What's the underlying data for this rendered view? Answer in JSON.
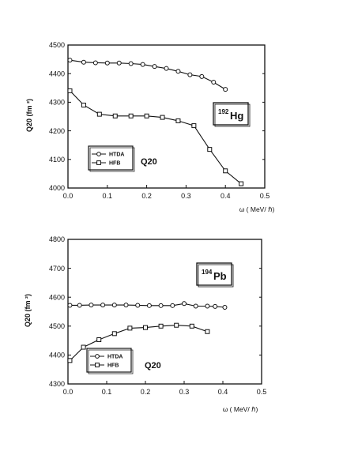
{
  "chart_data": [
    {
      "type": "line",
      "nucleus": {
        "mass": "192",
        "symbol": "Hg"
      },
      "ylabel": "Q20  (fm ²)",
      "xlabel": "ω ( MeV/ ℏ)",
      "xlim": [
        0,
        0.5
      ],
      "ylim": [
        4000,
        4500
      ],
      "xticks": [
        "0.0",
        "0.1",
        "0.2",
        "0.3",
        "0.4",
        "0.5"
      ],
      "yticks": [
        "4000",
        "4100",
        "4200",
        "4300",
        "4400",
        "4500"
      ],
      "legend_title": "Q20",
      "grid": false,
      "legend_position": "bottom-left",
      "series": [
        {
          "name": "HTDA",
          "marker": "circle",
          "x": [
            0.005,
            0.04,
            0.07,
            0.1,
            0.13,
            0.16,
            0.19,
            0.22,
            0.25,
            0.28,
            0.31,
            0.34,
            0.37,
            0.4
          ],
          "y": [
            4447,
            4440,
            4438,
            4437,
            4437,
            4435,
            4432,
            4425,
            4418,
            4408,
            4396,
            4390,
            4370,
            4345
          ]
        },
        {
          "name": "HFB",
          "marker": "square",
          "x": [
            0.005,
            0.04,
            0.08,
            0.12,
            0.16,
            0.2,
            0.24,
            0.28,
            0.32,
            0.36,
            0.4,
            0.44
          ],
          "y": [
            4340,
            4290,
            4258,
            4252,
            4252,
            4252,
            4247,
            4235,
            4218,
            4135,
            4060,
            4015
          ]
        }
      ]
    },
    {
      "type": "line",
      "nucleus": {
        "mass": "194",
        "symbol": "Pb"
      },
      "ylabel": "Q20  (fm ²)",
      "xlabel": "ω ( MeV/ ℏ)",
      "xlim": [
        0,
        0.5
      ],
      "ylim": [
        4300,
        4800
      ],
      "xticks": [
        "0.0",
        "0.1",
        "0.2",
        "0.3",
        "0.4",
        "0.5"
      ],
      "yticks": [
        "4300",
        "4400",
        "4500",
        "4600",
        "4700",
        "4800"
      ],
      "legend_title": "Q20",
      "grid": false,
      "legend_position": "bottom-left",
      "series": [
        {
          "name": "HTDA",
          "marker": "circle",
          "x": [
            0.005,
            0.03,
            0.06,
            0.09,
            0.12,
            0.15,
            0.18,
            0.21,
            0.24,
            0.27,
            0.3,
            0.33,
            0.36,
            0.38,
            0.405
          ],
          "y": [
            4572,
            4572,
            4573,
            4573,
            4573,
            4573,
            4572,
            4571,
            4571,
            4571,
            4578,
            4569,
            4569,
            4568,
            4565
          ]
        },
        {
          "name": "HFB",
          "marker": "square",
          "x": [
            0.005,
            0.04,
            0.08,
            0.12,
            0.16,
            0.2,
            0.24,
            0.28,
            0.32,
            0.36
          ],
          "y": [
            4381,
            4427,
            4453,
            4474,
            4493,
            4495,
            4500,
            4503,
            4500,
            4481
          ]
        }
      ]
    }
  ]
}
